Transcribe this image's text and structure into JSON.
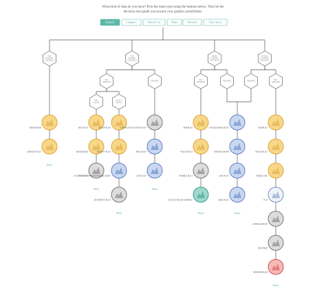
{
  "header": {
    "lines": [
      "What kind of data do you have? Pick the main type using the buttons below. Then let the",
      "decision tree guide you toward your graphic possibilities."
    ]
  },
  "buttons": [
    "Numeric",
    "Categoric",
    "Num & Cat",
    "Maps",
    "Network",
    "Time series"
  ],
  "nodes": [
    {
      "lines": [
        "ONE",
        "NUMERIC",
        "VARIABLE"
      ]
    },
    {
      "lines": [
        "TWO",
        "NUMERIC",
        "VARIABLES"
      ]
    },
    {
      "lines": [
        "THREE",
        "NUMERIC",
        "VARIABLES"
      ]
    },
    {
      "lines": [
        "SEVERAL",
        "NUMERIC",
        "VARIABLES"
      ]
    },
    {
      "lines": [
        "NOT",
        "ORDERED"
      ]
    },
    {
      "lines": [
        "ORDERED"
      ]
    },
    {
      "lines": [
        "NOT",
        "ORDERED"
      ]
    },
    {
      "lines": [
        "ORDERED"
      ]
    },
    {
      "lines": [
        "ORDERED"
      ]
    },
    {
      "lines": [
        "NOT",
        "ORDERED"
      ]
    },
    {
      "lines": [
        "FEW",
        "POINTS"
      ]
    },
    {
      "lines": [
        "MANY",
        "POINTS"
      ]
    }
  ],
  "columns": [
    {
      "plots": [
        "HISTOGRAM",
        "DENSITY PLOT"
      ],
      "link": "Story"
    },
    {
      "plots": [
        "BOX PLOT",
        "HISTOGRAM",
        "SCATTER PLOT"
      ],
      "link": "Story"
    },
    {
      "plots": [
        "VIOLIN PLOT",
        "DENSITY PLOT",
        "SCATTER WITH MARGINAL POINT",
        "2D DENSITY PLOT"
      ],
      "link": "Story"
    },
    {
      "plots": [
        "CONNECTED SCATTER PLOT",
        "AREA PLOT",
        "LINE PLOT"
      ],
      "link": "Story"
    },
    {
      "plots": [
        "BOXPLOT",
        "VIOLIN PLOT",
        "BUBBLE PLOT",
        "3D SCATTER OR SURFACE"
      ],
      "link": "Story"
    },
    {
      "plots": [
        "STACKED AREA PLOT",
        "STREAM GRAPH",
        "LINE PLOT",
        "AREA PLOT"
      ],
      "link": "Story"
    },
    {
      "plots": [
        "BOXPLOT",
        "VIOLIN PLOT",
        "RIDGE LINE",
        "PCA",
        "CORRELOGRAM",
        "HEATMAP",
        "DENDROGRAM"
      ],
      "link": "Story"
    }
  ]
}
